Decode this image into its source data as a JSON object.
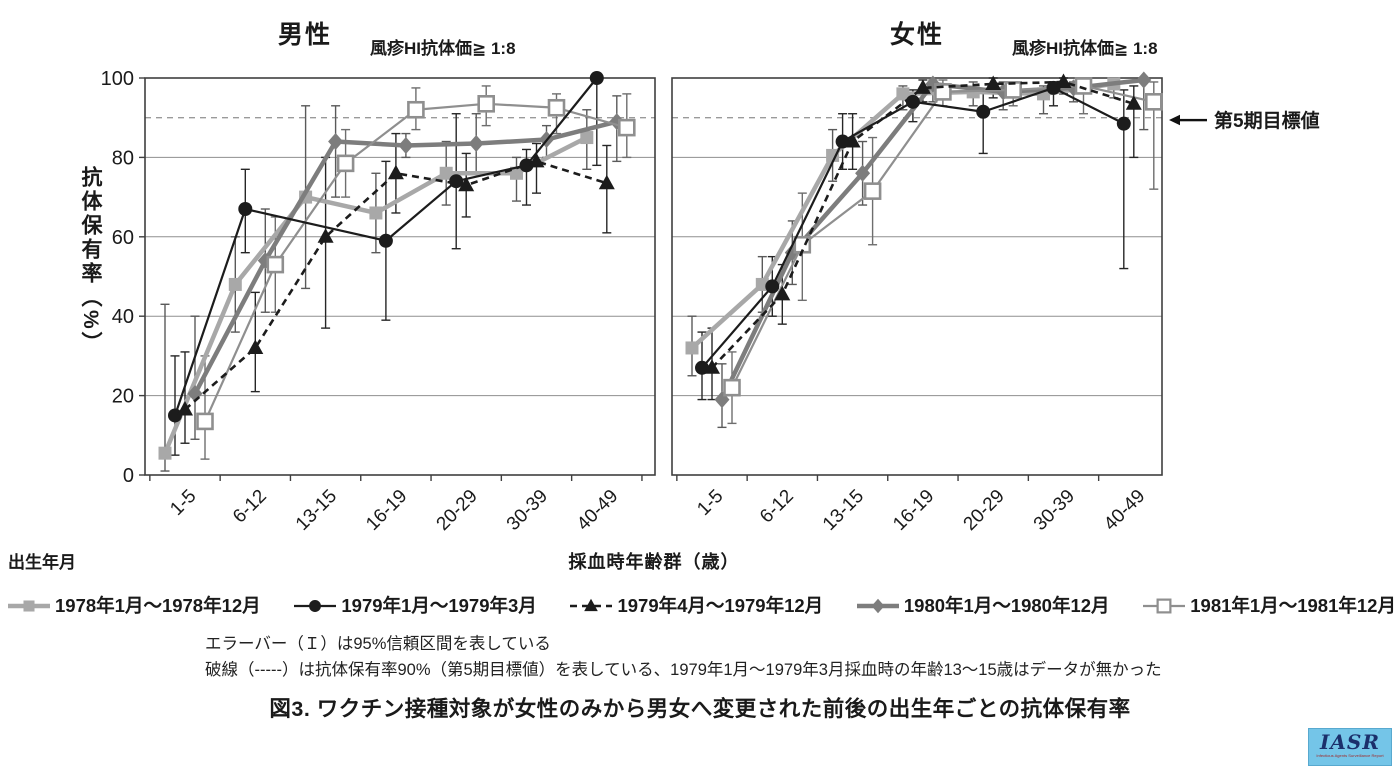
{
  "panels": {
    "male_title": "男性",
    "female_title": "女性",
    "subtitle": "風疹HI抗体価≧ 1:8"
  },
  "y_axis": {
    "label": "抗体保有率（%）",
    "ticks": [
      0,
      20,
      40,
      60,
      80,
      100
    ]
  },
  "x_axis": {
    "label": "採血時年齢群（歳）",
    "categories": [
      "1-5",
      "6-12",
      "13-15",
      "16-19",
      "20-29",
      "30-39",
      "40-49"
    ]
  },
  "target_line": {
    "value": 90,
    "annotation": "第5期目標値"
  },
  "legend": {
    "title": "出生年月",
    "items": [
      {
        "label": "1978年1月～1978年12月",
        "marker": "filled-square",
        "color": "#a8a8a8",
        "line": "thick-solid"
      },
      {
        "label": "1979年1月～1979年3月",
        "marker": "filled-circle",
        "color": "#1c1c1c",
        "line": "thin-solid"
      },
      {
        "label": "1979年4月～1979年12月",
        "marker": "filled-triangle",
        "color": "#1c1c1c",
        "line": "dashed"
      },
      {
        "label": "1980年1月～1980年12月",
        "marker": "filled-diamond",
        "color": "#7d7d7d",
        "line": "thick-solid"
      },
      {
        "label": "1981年1月～1981年12月",
        "marker": "open-square",
        "color": "#8f8f8f",
        "line": "thin-solid"
      }
    ]
  },
  "chart_data": [
    {
      "type": "line",
      "title": "男性",
      "subtitle": "風疹HI抗体価≧ 1:8",
      "categories": [
        "1-5",
        "6-12",
        "13-15",
        "16-19",
        "20-29",
        "30-39",
        "40-49"
      ],
      "ylim": [
        0,
        100
      ],
      "ylabel": "抗体保有率（%）",
      "xlabel": "採血時年齢群（歳）",
      "target_value": 90,
      "series": [
        {
          "name": "1978年1月～1978年12月",
          "values": [
            5.5,
            48,
            70,
            66,
            76,
            76,
            85
          ],
          "ci_low": [
            1,
            36,
            47,
            56,
            68,
            69,
            77
          ],
          "ci_high": [
            43,
            60,
            93,
            76,
            84,
            80,
            92
          ]
        },
        {
          "name": "1979年1月～1979年3月",
          "values": [
            15,
            67,
            null,
            59,
            74,
            78,
            100
          ],
          "ci_low": [
            5,
            56,
            null,
            39,
            57,
            68,
            78
          ],
          "ci_high": [
            30,
            77,
            null,
            79,
            91,
            82,
            100
          ]
        },
        {
          "name": "1979年4月～1979年12月",
          "values": [
            16.5,
            32,
            60,
            76,
            73,
            79,
            73.5
          ],
          "ci_low": [
            8,
            21,
            37,
            66,
            65,
            71,
            61
          ],
          "ci_high": [
            31,
            46,
            80,
            86,
            81,
            83.5,
            83
          ]
        },
        {
          "name": "1980年1月～1980年12月",
          "values": [
            20.5,
            54,
            84,
            83,
            83.5,
            84.5,
            89
          ],
          "ci_low": [
            9,
            41,
            70,
            80,
            76,
            80,
            79
          ],
          "ci_high": [
            40,
            67,
            93,
            86,
            91,
            88,
            95.5
          ]
        },
        {
          "name": "1981年1月～1981年12月",
          "values": [
            13.5,
            53,
            78.5,
            92,
            93.5,
            92.5,
            87.5
          ],
          "ci_low": [
            4,
            41,
            70,
            87,
            88,
            86,
            80
          ],
          "ci_high": [
            30,
            65,
            87,
            97.5,
            98,
            96,
            96
          ]
        }
      ]
    },
    {
      "type": "line",
      "title": "女性",
      "subtitle": "風疹HI抗体価≧ 1:8",
      "categories": [
        "1-5",
        "6-12",
        "13-15",
        "16-19",
        "20-29",
        "30-39",
        "40-49"
      ],
      "ylim": [
        0,
        100
      ],
      "ylabel": "抗体保有率（%）",
      "xlabel": "採血時年齢群（歳）",
      "target_value": 90,
      "series": [
        {
          "name": "1978年1月～1978年12月",
          "values": [
            32,
            48,
            80.5,
            96,
            96.5,
            96,
            98.5
          ],
          "ci_low": [
            25,
            41,
            74,
            92,
            93,
            91,
            95
          ],
          "ci_high": [
            40,
            55,
            87,
            98,
            99,
            98,
            100
          ]
        },
        {
          "name": "1979年1月～1979年3月",
          "values": [
            27,
            47.5,
            84,
            94,
            91.5,
            97.5,
            88.5
          ],
          "ci_low": [
            19,
            40,
            77,
            89,
            81,
            93,
            52
          ],
          "ci_high": [
            36,
            55,
            91,
            97,
            97,
            99,
            97
          ]
        },
        {
          "name": "1979年4月～1979年12月",
          "values": [
            27,
            45.5,
            84,
            97.5,
            98.5,
            99,
            93.5
          ],
          "ci_low": [
            19,
            38,
            77,
            94,
            95,
            96,
            80
          ],
          "ci_high": [
            37,
            53,
            91,
            99.5,
            100,
            100,
            98
          ]
        },
        {
          "name": "1980年1月～1980年12月",
          "values": [
            19,
            56,
            76,
            98.5,
            96.5,
            97.5,
            99.5
          ],
          "ci_low": [
            12,
            48,
            68,
            94,
            92,
            94,
            87
          ],
          "ci_high": [
            28,
            64,
            84,
            99.5,
            99,
            99,
            100
          ]
        },
        {
          "name": "1981年1月～1981年12月",
          "values": [
            22,
            58,
            71.5,
            96.5,
            97,
            98,
            94
          ],
          "ci_low": [
            13,
            44,
            58,
            93,
            93,
            91,
            72
          ],
          "ci_high": [
            31,
            71,
            85,
            99.5,
            99,
            99.5,
            99
          ]
        }
      ]
    }
  ],
  "notes": [
    "エラーバー（Ｉ）は95%信頼区間を表している",
    "破線（-----）は抗体保有率90%（第5期目標値）を表している、1979年1月～1979年3月採血時の年齢13～15歳はデータが無かった"
  ],
  "caption": "図3. ワクチン接種対象が女性のみから男女へ変更された前後の出生年ごとの抗体保有率",
  "logo": {
    "text": "IASR",
    "subtext": "Infectious Agents Surveillance Report"
  },
  "colors": {
    "series_1978": "#a8a8a8",
    "series_1979jm": "#1c1c1c",
    "series_1979ad": "#1c1c1c",
    "series_1980": "#7d7d7d",
    "series_1981": "#8f8f8f",
    "gridline": "#8f8f8f",
    "plot_border": "#3f3f3f",
    "target_dash": "#9a9a9a",
    "logo_bg": "#74c5e8",
    "logo_text": "#1b2f6b"
  }
}
